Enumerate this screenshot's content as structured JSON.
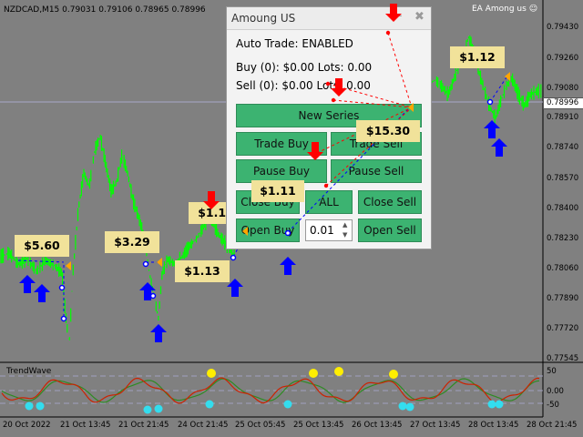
{
  "header": {
    "symbol_info": "NZDCAD,M15",
    "ohlc": [
      "0.79031",
      "0.79106",
      "0.78965",
      "0.78996"
    ]
  },
  "ea_label": "EA Among us",
  "price_axis": {
    "labels": [
      "0.79430",
      "0.79260",
      "0.79080",
      "0.78910",
      "0.78740",
      "0.78570",
      "0.78400",
      "0.78230",
      "0.78060",
      "0.77890",
      "0.77720",
      "0.77545",
      "0.77375"
    ],
    "current": "0.78996"
  },
  "indicator": {
    "name": "TrendWave",
    "levels": [
      "50",
      "0.00",
      "-50"
    ]
  },
  "time_axis": [
    "20 Oct 2022",
    "21 Oct 13:45",
    "21 Oct 21:45",
    "24 Oct 05:45",
    "24 Oct 13:45",
    "24 Oct 21:45",
    "25 Oct 05:45",
    "25 Oct 13:45",
    "25 Oct 21:45",
    "26 Oct 05:45",
    "26 Oct 13:45",
    "26 Oct 21:45",
    "27 Oct 05:45",
    "27 Oct 13:45",
    "27 Oct 21:45",
    "28 Oct 05:45",
    "28 Oct 13:45",
    "28 Oct 21:45"
  ],
  "panel": {
    "title": "Amoung US",
    "auto_trade": "Auto Trade: ENABLED",
    "buy_info": "Buy (0): $0.00 Lots: 0.00",
    "sell_info": "Sell (0): $0.00 Lots: 0.00",
    "buttons": {
      "new_series": "New Series",
      "trade_buy": "Trade Buy",
      "trade_sell": "Trade Sell",
      "pause_buy": "Pause Buy",
      "pause_sell": "Pause Sell",
      "close_buy": "Close Buy",
      "all": "ALL",
      "close_sell": "Close Sell",
      "open_buy": "Open Buy",
      "open_sell": "Open Sell"
    },
    "lots_value": "0.01"
  },
  "profit_labels": [
    "$5.60",
    "$3.29",
    "$1.13",
    "$1.10",
    "$1.11",
    "$15.30",
    "$1.12"
  ],
  "colors": {
    "chart_bg": "#808080",
    "candles": "#00ff00",
    "buy_arrow": "#0000ff",
    "sell_arrow": "#ff0000",
    "button": "#3cb371",
    "profit_bg": "#f1e29a"
  }
}
